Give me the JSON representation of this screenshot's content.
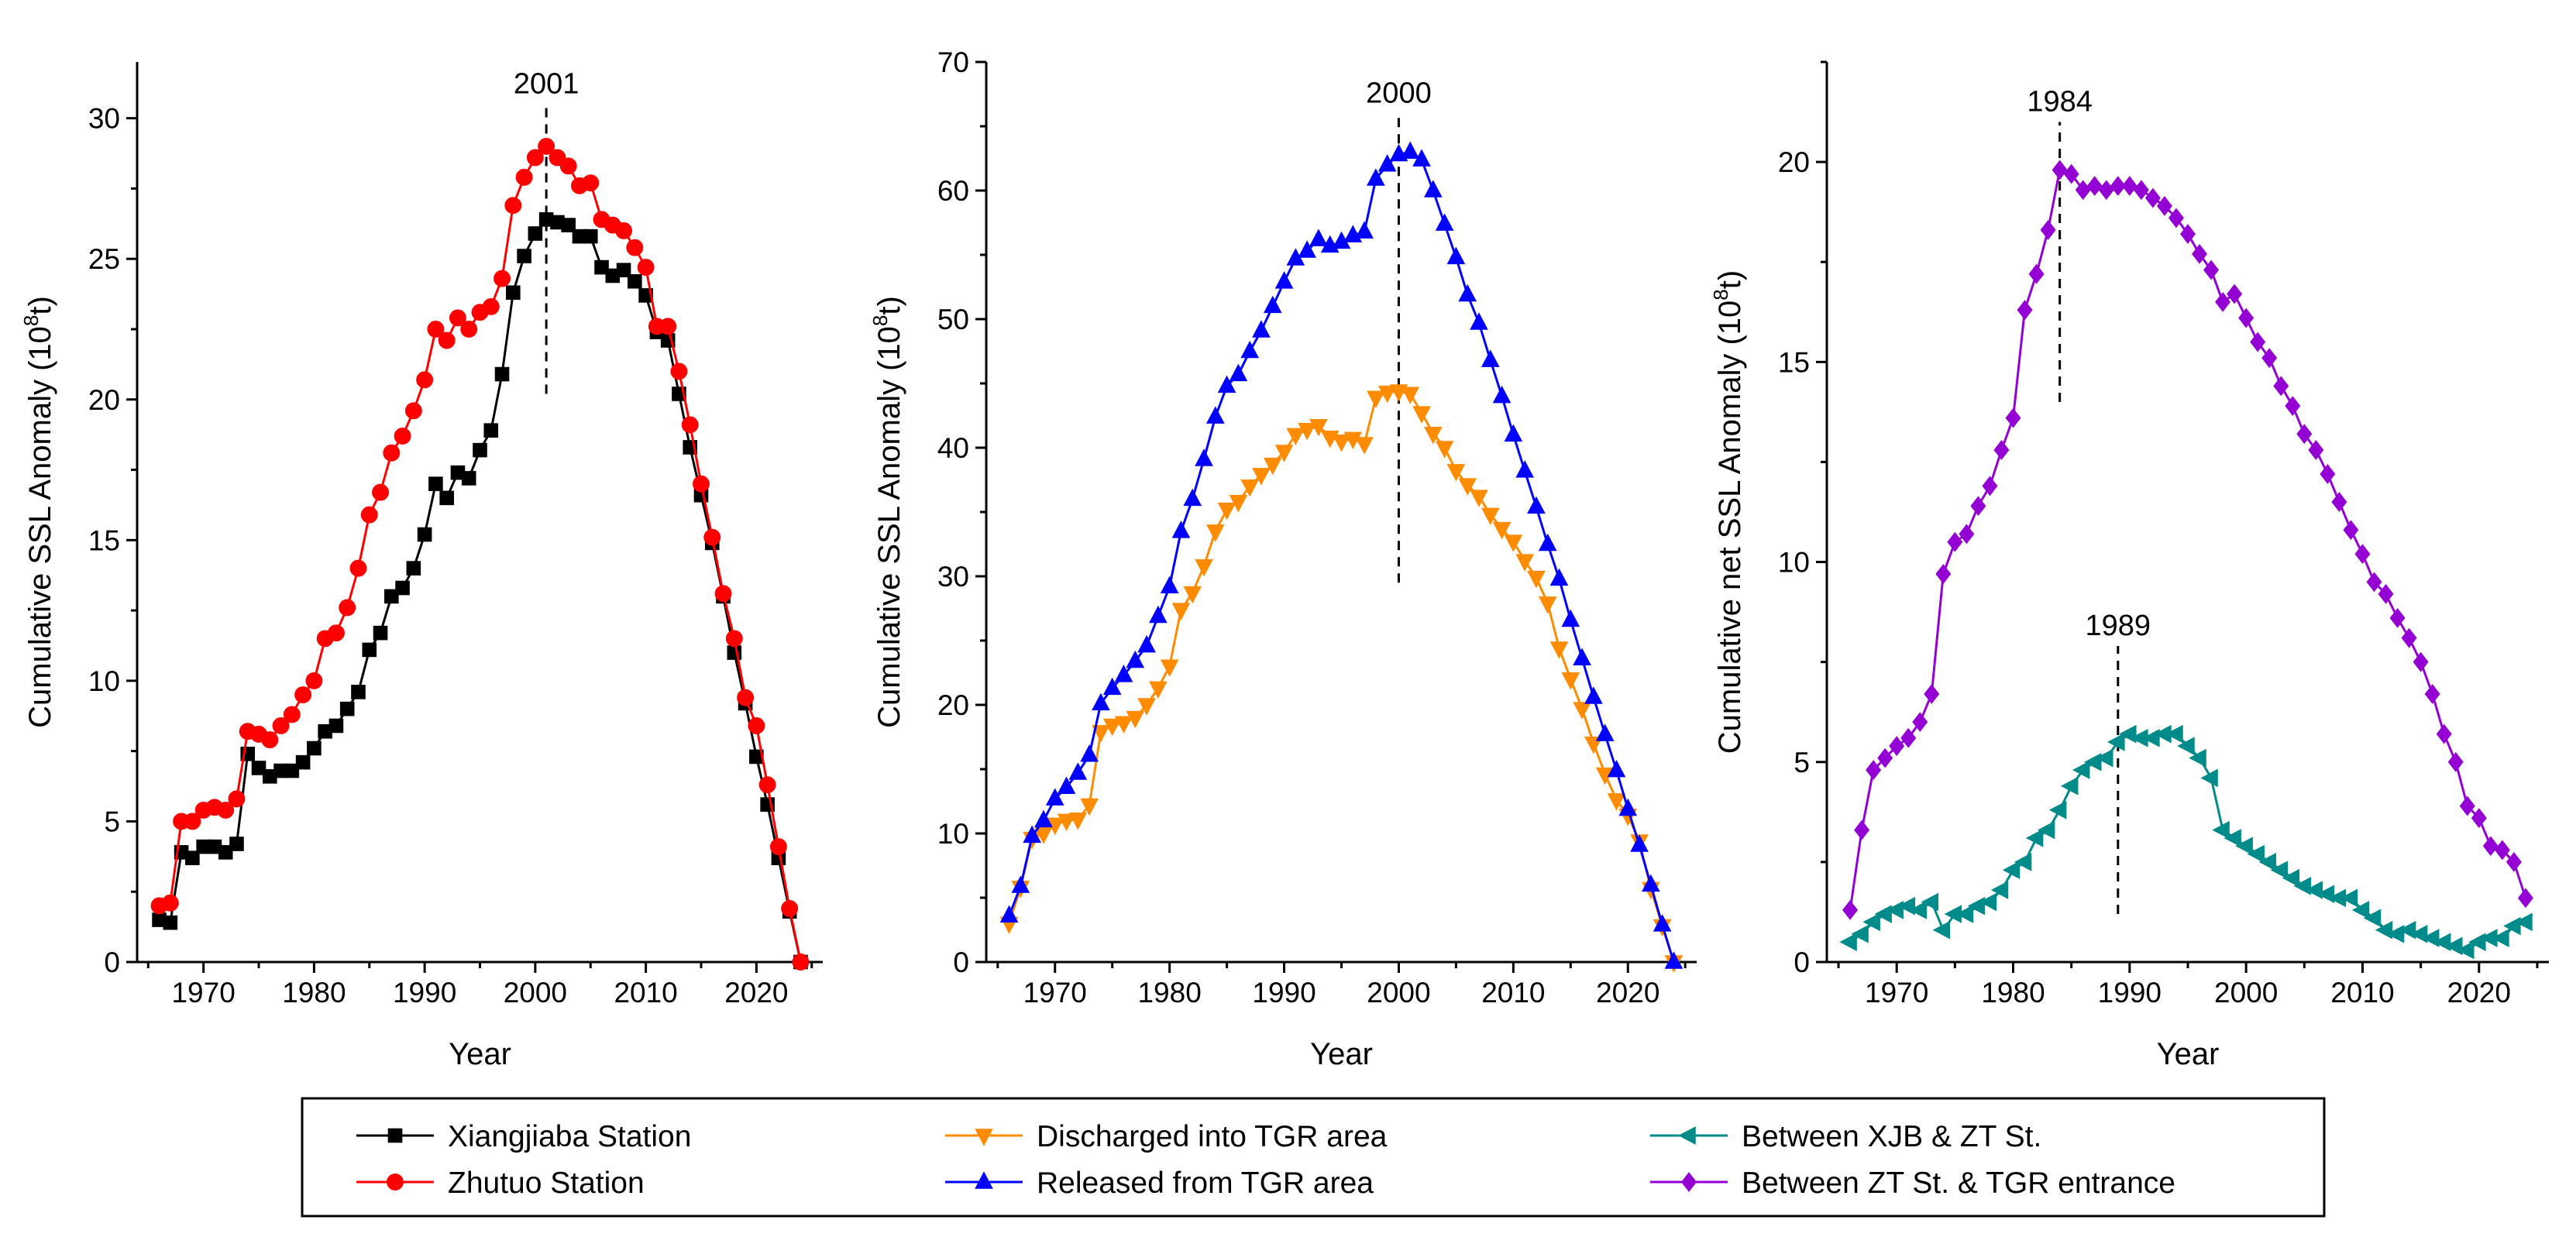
{
  "chart_data": [
    {
      "type": "line",
      "panel": "left",
      "xlabel": "Year",
      "ylabel": "Cumulative SSL Anomaly (10",
      "ylabel_sup": "8",
      "ylabel_end": "t)",
      "xlim": [
        1964,
        2026
      ],
      "ylim": [
        0,
        32
      ],
      "xticks": [
        1970,
        1980,
        1990,
        2000,
        2010,
        2020
      ],
      "yticks": [
        0,
        5,
        10,
        15,
        20,
        25,
        30
      ],
      "annotations": [
        {
          "label": "2001",
          "x": 2001,
          "y_from": 20.2,
          "y_to": 30.5
        }
      ],
      "series": [
        {
          "name": "Xiangjiaba Station",
          "color": "#000000",
          "marker": "square",
          "x": [
            1966,
            1967,
            1968,
            1969,
            1970,
            1971,
            1972,
            1973,
            1974,
            1975,
            1976,
            1977,
            1978,
            1979,
            1980,
            1981,
            1982,
            1983,
            1984,
            1985,
            1986,
            1987,
            1988,
            1989,
            1990,
            1991,
            1992,
            1993,
            1994,
            1995,
            1996,
            1997,
            1998,
            1999,
            2000,
            2001,
            2002,
            2003,
            2004,
            2005,
            2006,
            2007,
            2008,
            2009,
            2010,
            2011,
            2012,
            2013,
            2014,
            2015,
            2016,
            2017,
            2018,
            2019,
            2020,
            2021,
            2022,
            2023,
            2024
          ],
          "values": [
            1.5,
            1.4,
            3.9,
            3.7,
            4.1,
            4.1,
            3.9,
            4.2,
            7.4,
            6.9,
            6.6,
            6.8,
            6.8,
            7.1,
            7.6,
            8.2,
            8.4,
            9.0,
            9.6,
            11.1,
            11.7,
            13.0,
            13.3,
            14.0,
            15.2,
            17.0,
            16.5,
            17.4,
            17.2,
            18.2,
            18.9,
            20.9,
            23.8,
            25.1,
            25.9,
            26.4,
            26.3,
            26.2,
            25.8,
            25.8,
            24.7,
            24.4,
            24.6,
            24.2,
            23.7,
            22.4,
            22.1,
            20.2,
            18.3,
            16.6,
            14.9,
            13.0,
            11.0,
            9.2,
            7.3,
            5.6,
            3.7,
            1.8,
            0.0
          ]
        },
        {
          "name": "Zhutuo Station",
          "color": "#ff0000",
          "marker": "circle",
          "x": [
            1966,
            1967,
            1968,
            1969,
            1970,
            1971,
            1972,
            1973,
            1974,
            1975,
            1976,
            1977,
            1978,
            1979,
            1980,
            1981,
            1982,
            1983,
            1984,
            1985,
            1986,
            1987,
            1988,
            1989,
            1990,
            1991,
            1992,
            1993,
            1994,
            1995,
            1996,
            1997,
            1998,
            1999,
            2000,
            2001,
            2002,
            2003,
            2004,
            2005,
            2006,
            2007,
            2008,
            2009,
            2010,
            2011,
            2012,
            2013,
            2014,
            2015,
            2016,
            2017,
            2018,
            2019,
            2020,
            2021,
            2022,
            2023,
            2024
          ],
          "values": [
            2.0,
            2.1,
            5.0,
            5.0,
            5.4,
            5.5,
            5.4,
            5.8,
            8.2,
            8.1,
            7.9,
            8.4,
            8.8,
            9.5,
            10.0,
            11.5,
            11.7,
            12.6,
            14.0,
            15.9,
            16.7,
            18.1,
            18.7,
            19.6,
            20.7,
            22.5,
            22.1,
            22.9,
            22.5,
            23.1,
            23.3,
            24.3,
            26.9,
            27.9,
            28.6,
            29.0,
            28.6,
            28.3,
            27.6,
            27.7,
            26.4,
            26.2,
            26.0,
            25.4,
            24.7,
            22.6,
            22.6,
            21.0,
            19.1,
            17.0,
            15.1,
            13.1,
            11.5,
            9.4,
            8.4,
            6.3,
            4.1,
            1.9,
            0.0
          ]
        }
      ]
    },
    {
      "type": "line",
      "panel": "middle",
      "xlabel": "Year",
      "ylabel": "Cumulative SSL Anomaly (10",
      "ylabel_sup": "8",
      "ylabel_end": "t)",
      "xlim": [
        1964,
        2026
      ],
      "ylim": [
        0,
        70
      ],
      "xticks": [
        1970,
        1980,
        1990,
        2000,
        2010,
        2020
      ],
      "yticks": [
        0,
        10,
        20,
        30,
        40,
        50,
        60,
        70
      ],
      "annotations": [
        {
          "label": "2000",
          "x": 2000,
          "y_from": 29.5,
          "y_to": 66
        }
      ],
      "series": [
        {
          "name": "Discharged into TGR area",
          "color": "#ff8c00",
          "marker": "triangle-down",
          "x": [
            1966,
            1967,
            1968,
            1969,
            1970,
            1971,
            1972,
            1973,
            1974,
            1975,
            1976,
            1977,
            1978,
            1979,
            1980,
            1981,
            1982,
            1983,
            1984,
            1985,
            1986,
            1987,
            1988,
            1989,
            1990,
            1991,
            1992,
            1993,
            1994,
            1995,
            1996,
            1997,
            1998,
            1999,
            2000,
            2001,
            2002,
            2003,
            2004,
            2005,
            2006,
            2007,
            2008,
            2009,
            2010,
            2011,
            2012,
            2013,
            2014,
            2015,
            2016,
            2017,
            2018,
            2019,
            2020,
            2021,
            2022,
            2023,
            2024
          ],
          "values": [
            3.0,
            5.8,
            9.6,
            10.0,
            10.7,
            11.0,
            11.1,
            12.2,
            17.9,
            18.4,
            18.6,
            19.0,
            20.0,
            21.3,
            23.0,
            27.4,
            28.7,
            30.8,
            33.5,
            35.2,
            35.8,
            37.0,
            37.9,
            38.7,
            39.7,
            41.0,
            41.4,
            41.7,
            40.8,
            40.5,
            40.7,
            40.3,
            43.9,
            44.3,
            44.4,
            44.2,
            42.7,
            41.1,
            40.0,
            38.2,
            37.1,
            36.2,
            34.8,
            33.7,
            32.7,
            31.2,
            29.9,
            27.9,
            24.4,
            22.0,
            19.7,
            17.0,
            14.6,
            12.6,
            11.4,
            9.4,
            5.7,
            2.8,
            0.0
          ]
        },
        {
          "name": "Released from TGR area",
          "color": "#0000ff",
          "marker": "triangle-up",
          "x": [
            1966,
            1967,
            1968,
            1969,
            1970,
            1971,
            1972,
            1973,
            1974,
            1975,
            1976,
            1977,
            1978,
            1979,
            1980,
            1981,
            1982,
            1983,
            1984,
            1985,
            1986,
            1987,
            1988,
            1989,
            1990,
            1991,
            1992,
            1993,
            1994,
            1995,
            1996,
            1997,
            1998,
            1999,
            2000,
            2001,
            2002,
            2003,
            2004,
            2005,
            2006,
            2007,
            2008,
            2009,
            2010,
            2011,
            2012,
            2013,
            2014,
            2015,
            2016,
            2017,
            2018,
            2019,
            2020,
            2021,
            2022,
            2023,
            2024
          ],
          "values": [
            3.6,
            5.9,
            9.8,
            11.0,
            12.7,
            13.6,
            14.7,
            16.1,
            20.1,
            21.3,
            22.3,
            23.4,
            24.6,
            26.9,
            29.2,
            33.5,
            36.0,
            39.1,
            42.4,
            44.8,
            45.7,
            47.5,
            49.1,
            51.0,
            52.9,
            54.7,
            55.3,
            56.2,
            55.7,
            56.0,
            56.5,
            56.8,
            60.9,
            62.0,
            62.8,
            63.0,
            62.4,
            60.0,
            57.4,
            54.8,
            51.9,
            49.7,
            46.8,
            44.0,
            41.0,
            38.2,
            35.4,
            32.5,
            29.8,
            26.6,
            23.6,
            20.6,
            17.7,
            14.9,
            11.9,
            9.1,
            6.0,
            2.9,
            0.0
          ]
        }
      ]
    },
    {
      "type": "line",
      "panel": "right",
      "xlabel": "Year",
      "ylabel": "Cumulative net SSL Anomaly (10",
      "ylabel_sup": "8",
      "ylabel_end": "t)",
      "xlim": [
        1964,
        2026
      ],
      "ylim": [
        0,
        22.5
      ],
      "xticks": [
        1970,
        1980,
        1990,
        2000,
        2010,
        2020
      ],
      "yticks": [
        0,
        5,
        10,
        15,
        20
      ],
      "annotations": [
        {
          "label": "1984",
          "x": 1984,
          "y_from": 14,
          "y_to": 21
        },
        {
          "label": "1989",
          "x": 1989,
          "y_from": 1.2,
          "y_to": 7.9
        }
      ],
      "series": [
        {
          "name": "Between XJB & ZT St.",
          "color": "#008b8b",
          "marker": "triangle-left",
          "x": [
            1966,
            1967,
            1968,
            1969,
            1970,
            1971,
            1972,
            1973,
            1974,
            1975,
            1976,
            1977,
            1978,
            1979,
            1980,
            1981,
            1982,
            1983,
            1984,
            1985,
            1986,
            1987,
            1988,
            1989,
            1990,
            1991,
            1992,
            1993,
            1994,
            1995,
            1996,
            1997,
            1998,
            1999,
            2000,
            2001,
            2002,
            2003,
            2004,
            2005,
            2006,
            2007,
            2008,
            2009,
            2010,
            2011,
            2012,
            2013,
            2014,
            2015,
            2016,
            2017,
            2018,
            2019,
            2020,
            2021,
            2022,
            2023,
            2024
          ],
          "values": [
            0.5,
            0.7,
            1.0,
            1.2,
            1.3,
            1.4,
            1.3,
            1.5,
            0.8,
            1.2,
            1.2,
            1.4,
            1.5,
            1.8,
            2.3,
            2.5,
            3.1,
            3.3,
            3.8,
            4.4,
            4.8,
            5.0,
            5.1,
            5.5,
            5.7,
            5.6,
            5.6,
            5.7,
            5.7,
            5.4,
            5.1,
            4.6,
            3.3,
            3.1,
            2.9,
            2.7,
            2.5,
            2.3,
            2.1,
            1.9,
            1.8,
            1.7,
            1.6,
            1.6,
            1.3,
            1.1,
            0.8,
            0.7,
            0.8,
            0.7,
            0.6,
            0.5,
            0.4,
            0.3,
            0.5,
            0.6,
            0.6,
            0.9,
            1.0
          ]
        },
        {
          "name": "Between ZT St. & TGR entrance",
          "color": "#9400d3",
          "marker": "diamond",
          "x": [
            1966,
            1967,
            1968,
            1969,
            1970,
            1971,
            1972,
            1973,
            1974,
            1975,
            1976,
            1977,
            1978,
            1979,
            1980,
            1981,
            1982,
            1983,
            1984,
            1985,
            1986,
            1987,
            1988,
            1989,
            1990,
            1991,
            1992,
            1993,
            1994,
            1995,
            1996,
            1997,
            1998,
            1999,
            2000,
            2001,
            2002,
            2003,
            2004,
            2005,
            2006,
            2007,
            2008,
            2009,
            2010,
            2011,
            2012,
            2013,
            2014,
            2015,
            2016,
            2017,
            2018,
            2019,
            2020,
            2021,
            2022,
            2023,
            2024
          ],
          "values": [
            1.3,
            3.3,
            4.8,
            5.1,
            5.4,
            5.6,
            6.0,
            6.7,
            9.7,
            10.5,
            10.7,
            11.4,
            11.9,
            12.8,
            13.6,
            16.3,
            17.2,
            18.3,
            19.8,
            19.7,
            19.3,
            19.4,
            19.3,
            19.4,
            19.4,
            19.3,
            19.1,
            18.9,
            18.6,
            18.2,
            17.7,
            17.3,
            16.5,
            16.7,
            16.1,
            15.5,
            15.1,
            14.4,
            13.9,
            13.2,
            12.8,
            12.2,
            11.5,
            10.8,
            10.2,
            9.5,
            9.2,
            8.6,
            8.1,
            7.5,
            6.7,
            5.7,
            5.0,
            3.9,
            3.6,
            2.9,
            2.8,
            2.5,
            1.6
          ]
        }
      ]
    }
  ],
  "legend": [
    {
      "label": "Xiangjiaba Station",
      "color": "#000000",
      "marker": "square"
    },
    {
      "label": "Zhutuo Station",
      "color": "#ff0000",
      "marker": "circle"
    },
    {
      "label": "Discharged into TGR area",
      "color": "#ff8c00",
      "marker": "triangle-down"
    },
    {
      "label": "Released from TGR area",
      "color": "#0000ff",
      "marker": "triangle-up"
    },
    {
      "label": "Between XJB & ZT St.",
      "color": "#008b8b",
      "marker": "triangle-left"
    },
    {
      "label": "Between ZT St. & TGR entrance",
      "color": "#9400d3",
      "marker": "diamond"
    }
  ]
}
